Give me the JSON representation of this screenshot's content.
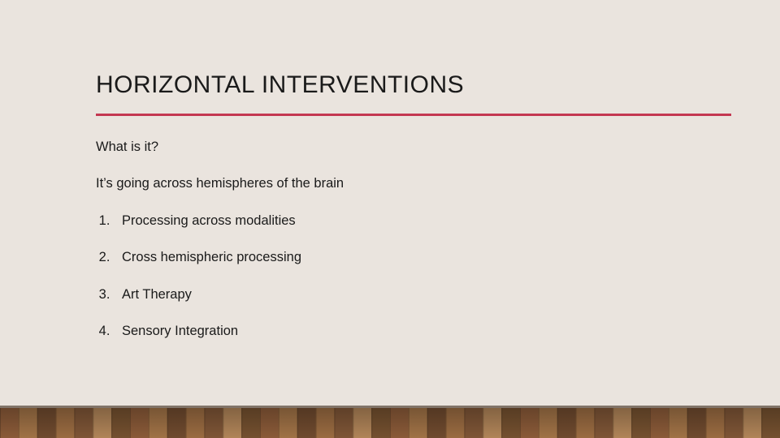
{
  "slide": {
    "title": "HORIZONTAL INTERVENTIONS",
    "subheading": "What is it?",
    "description": "It’s going across hemispheres of the brain",
    "items": [
      "Processing across modalities",
      "Cross hemispheric processing",
      "Art Therapy",
      "Sensory Integration"
    ]
  },
  "style": {
    "background_color": "#eae4de",
    "accent_color": "#c43751",
    "text_color": "#1a1a1a",
    "title_fontsize": 30,
    "body_fontsize": 16.5,
    "floor_height": 40,
    "floor_plank_colors": [
      "#8a5a38",
      "#a07246",
      "#6f4a2e",
      "#9a6b41",
      "#7e5536",
      "#b08458",
      "#74502f"
    ]
  }
}
